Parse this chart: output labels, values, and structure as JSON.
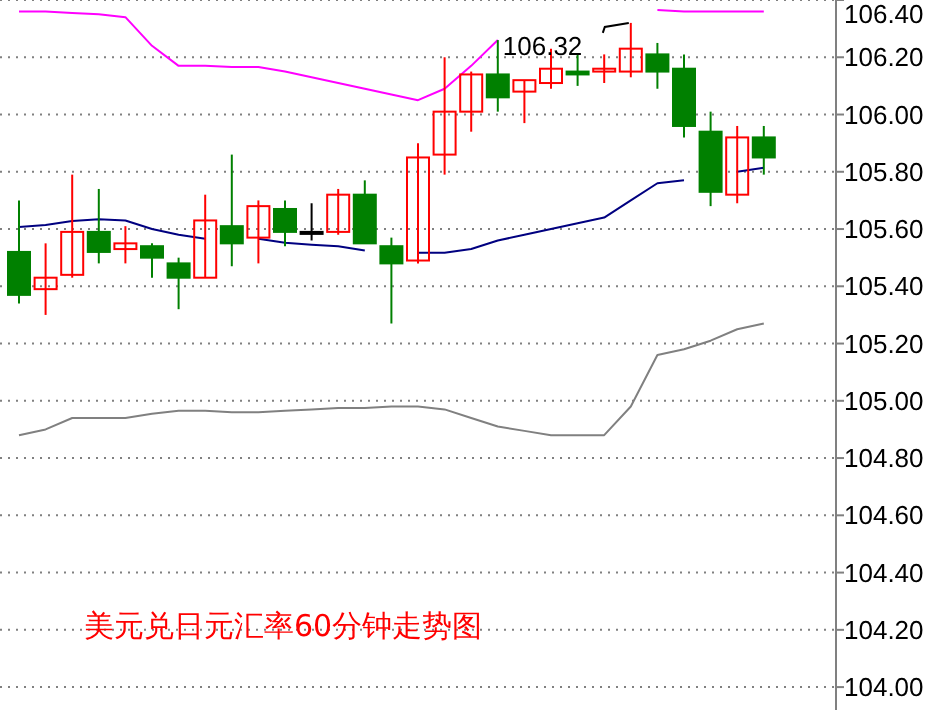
{
  "chart_data": {
    "type": "candlestick",
    "title": "美元兑日元汇率60分钟走势图",
    "categories": [
      null,
      null,
      null,
      null,
      null,
      null,
      null,
      null,
      null,
      null,
      null,
      null,
      null,
      null,
      null,
      null,
      null,
      null,
      null,
      null,
      null,
      null,
      null,
      null,
      null,
      null,
      null,
      null,
      null
    ],
    "ohlc": [
      [
        105.52,
        105.7,
        105.34,
        105.37
      ],
      [
        105.39,
        105.55,
        105.3,
        105.43
      ],
      [
        105.44,
        105.79,
        105.43,
        105.59
      ],
      [
        105.59,
        105.74,
        105.48,
        105.52
      ],
      [
        105.53,
        105.61,
        105.48,
        105.55
      ],
      [
        105.54,
        105.55,
        105.43,
        105.5
      ],
      [
        105.48,
        105.5,
        105.32,
        105.43
      ],
      [
        105.43,
        105.72,
        105.43,
        105.63
      ],
      [
        105.61,
        105.86,
        105.47,
        105.55
      ],
      [
        105.57,
        105.7,
        105.48,
        105.68
      ],
      [
        105.67,
        105.7,
        105.54,
        105.59
      ],
      [
        105.59,
        105.69,
        105.56,
        105.59
      ],
      [
        105.59,
        105.74,
        105.58,
        105.72
      ],
      [
        105.72,
        105.77,
        105.55,
        105.55
      ],
      [
        105.54,
        105.57,
        105.27,
        105.48
      ],
      [
        105.49,
        105.9,
        105.48,
        105.85
      ],
      [
        105.86,
        106.2,
        105.79,
        106.01
      ],
      [
        106.01,
        106.15,
        105.94,
        106.14
      ],
      [
        106.14,
        106.26,
        106.01,
        106.06
      ],
      [
        106.08,
        106.12,
        105.97,
        106.12
      ],
      [
        106.11,
        106.23,
        106.09,
        106.16
      ],
      [
        106.15,
        106.21,
        106.1,
        106.14
      ],
      [
        106.15,
        106.21,
        106.11,
        106.16
      ],
      [
        106.15,
        106.32,
        106.13,
        106.23
      ],
      [
        106.21,
        106.25,
        106.09,
        106.15
      ],
      [
        106.16,
        106.21,
        105.92,
        105.96
      ],
      [
        105.94,
        106.01,
        105.68,
        105.73
      ],
      [
        105.72,
        105.96,
        105.69,
        105.92
      ],
      [
        105.92,
        105.96,
        105.79,
        105.85
      ]
    ],
    "colors": [
      "#008000",
      "#ff0000",
      "#ff0000",
      "#008000",
      "#ff0000",
      "#008000",
      "#008000",
      "#ff0000",
      "#008000",
      "#ff0000",
      "#008000",
      "#000000",
      "#ff0000",
      "#008000",
      "#008000",
      "#ff0000",
      "#ff0000",
      "#ff0000",
      "#008000",
      "#ff0000",
      "#ff0000",
      "#008000",
      "#ff0000",
      "#ff0000",
      "#008000",
      "#008000",
      "#008000",
      "#ff0000",
      "#008000"
    ],
    "series": [
      {
        "type": "line",
        "color": "#ff00ff",
        "values": [
          106.36,
          106.36,
          106.355,
          106.35,
          106.34,
          106.24,
          106.17,
          106.17,
          106.166,
          106.166,
          106.15,
          106.13,
          106.11,
          106.09,
          106.07,
          106.05,
          106.09,
          106.17,
          106.26,
          null,
          null,
          null,
          null,
          null,
          106.365,
          106.36,
          106.36,
          106.36,
          106.36
        ]
      },
      {
        "type": "line",
        "color": "#000080",
        "values": [
          105.607,
          105.614,
          105.628,
          105.634,
          105.63,
          105.6,
          105.58,
          105.566,
          null,
          105.566,
          105.552,
          105.545,
          105.54,
          105.525,
          null,
          105.517,
          105.517,
          105.53,
          105.56,
          105.58,
          105.6,
          105.62,
          105.64,
          105.7,
          105.76,
          105.77,
          null,
          105.8,
          105.814
        ]
      },
      {
        "type": "line",
        "color": "#808080",
        "values": [
          104.88,
          104.9,
          104.94,
          104.94,
          104.94,
          104.955,
          104.965,
          104.965,
          104.96,
          104.96,
          104.965,
          104.97,
          104.975,
          104.975,
          104.98,
          104.98,
          104.97,
          104.94,
          104.91,
          104.895,
          104.88,
          104.88,
          104.88,
          104.98,
          105.16,
          105.18,
          105.21,
          105.25,
          105.27
        ]
      }
    ],
    "ylim": [
      103.92,
      106.4
    ],
    "yticks": [
      {
        "value": 104,
        "label": "104.00"
      },
      {
        "value": 104.2,
        "label": "104.20"
      },
      {
        "value": 104.4,
        "label": "104.40"
      },
      {
        "value": 104.6,
        "label": "104.60"
      },
      {
        "value": 104.8,
        "label": "104.80"
      },
      {
        "value": 105,
        "label": "105.00"
      },
      {
        "value": 105.2,
        "label": "105.20"
      },
      {
        "value": 105.4,
        "label": "105.40"
      },
      {
        "value": 105.6,
        "label": "105.60"
      },
      {
        "value": 105.8,
        "label": "105.80"
      },
      {
        "value": 106,
        "label": "106.00"
      },
      {
        "value": 106.2,
        "label": "106.20"
      },
      {
        "value": 106.4,
        "label": "106.40"
      }
    ],
    "grid": "y",
    "annotations": [
      "106.32"
    ]
  }
}
